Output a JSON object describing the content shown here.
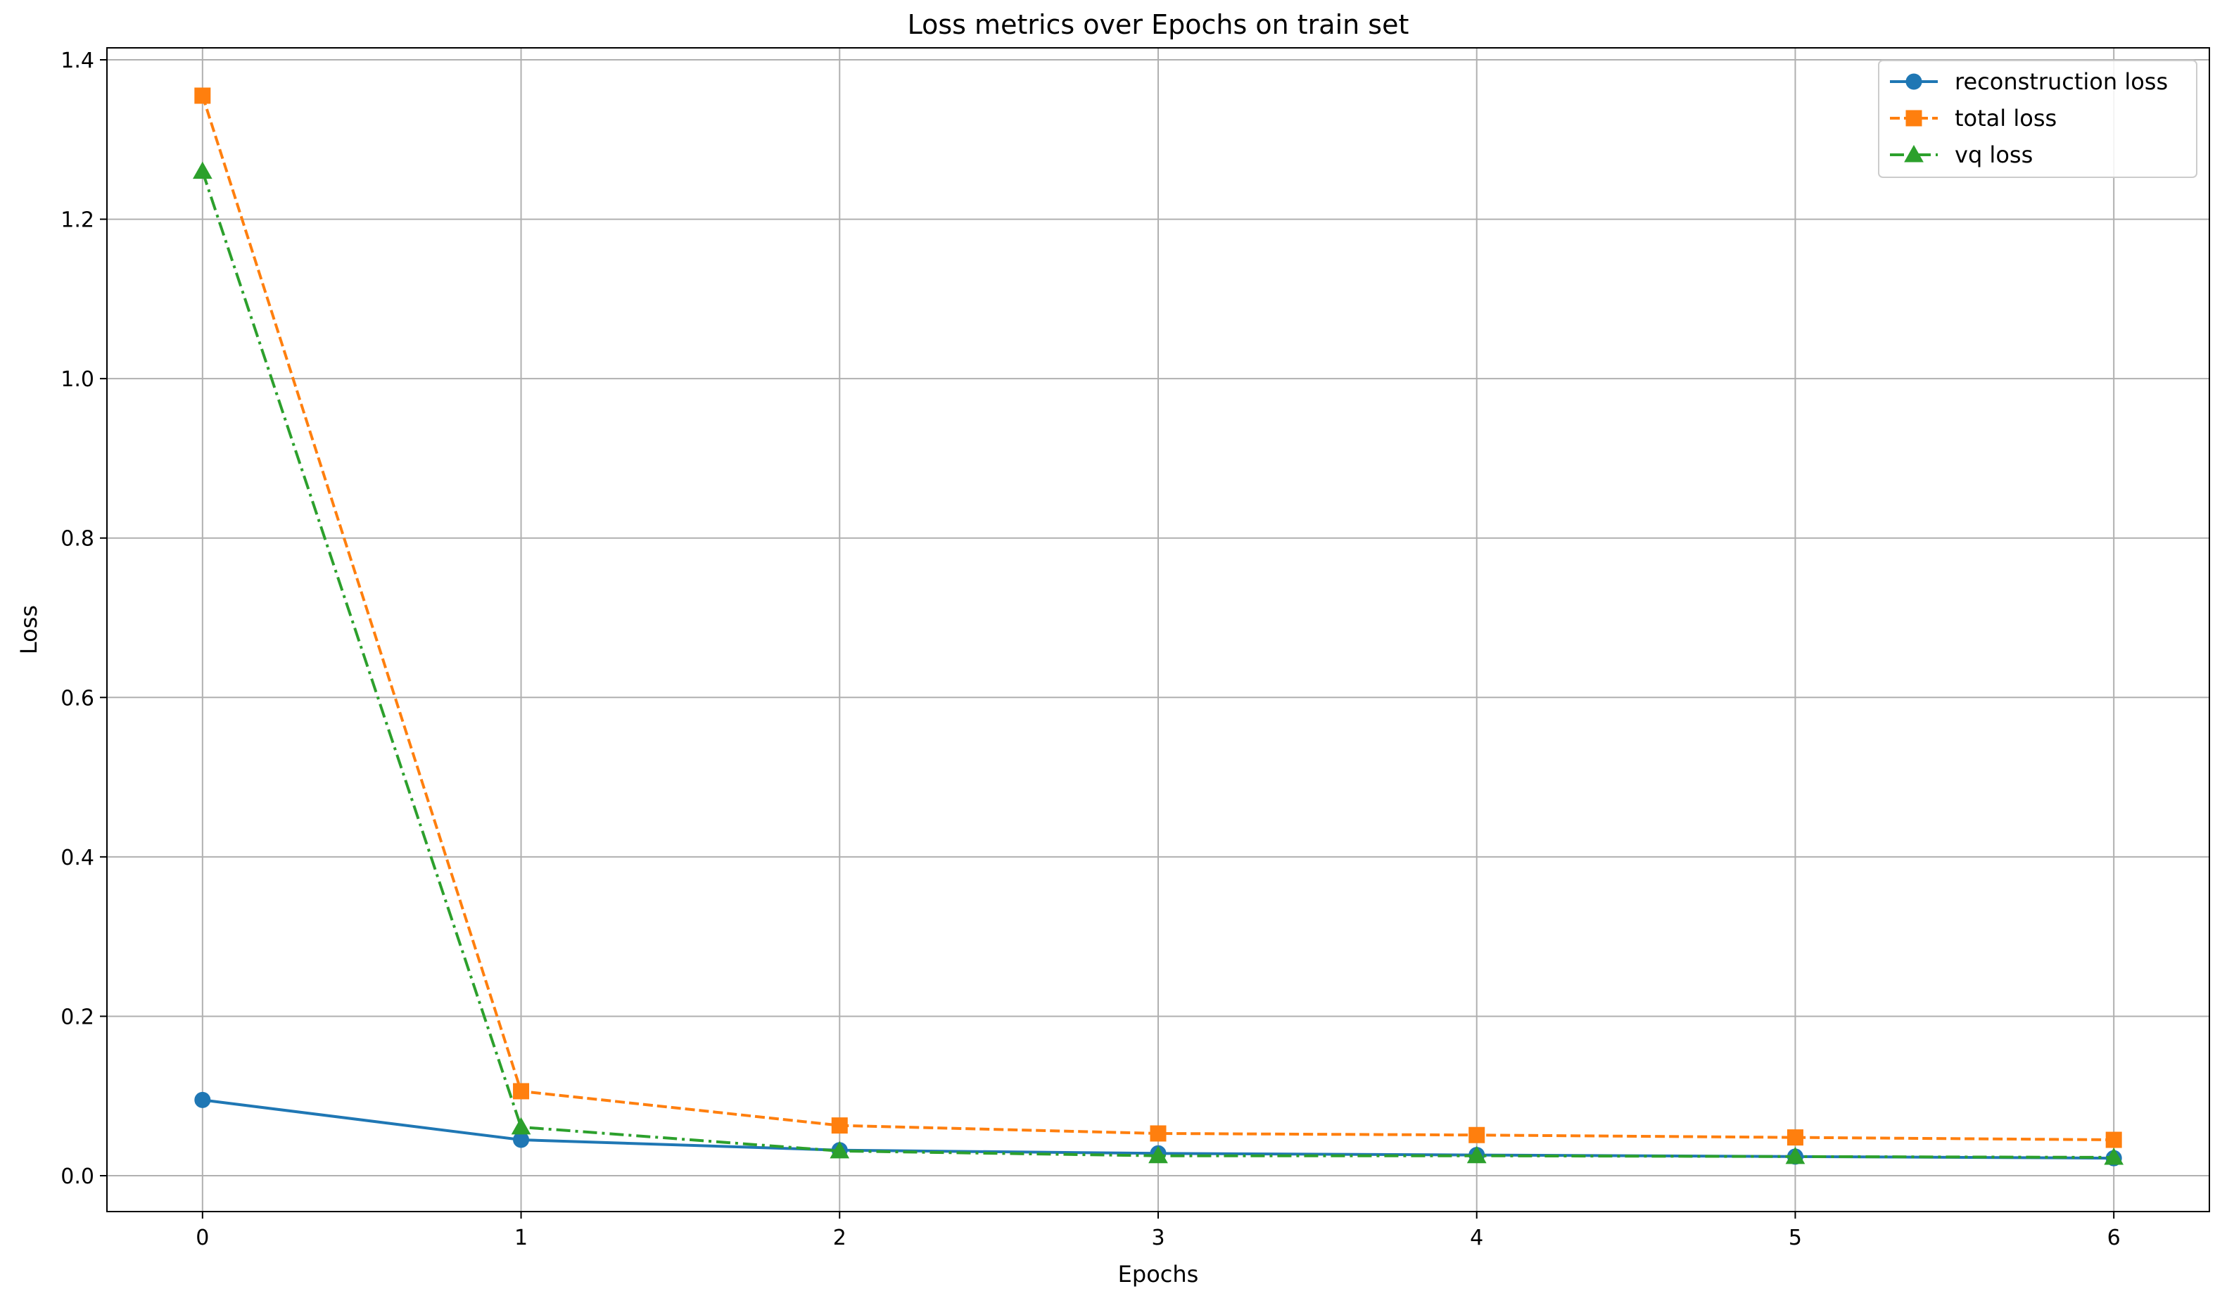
{
  "chart_data": {
    "type": "line",
    "title": "Loss metrics over Epochs on train set",
    "xlabel": "Epochs",
    "ylabel": "Loss",
    "x": [
      0,
      1,
      2,
      3,
      4,
      5,
      6
    ],
    "xlim": [
      -0.3,
      6.3
    ],
    "ylim": [
      -0.045,
      1.415
    ],
    "xticks": [
      "0",
      "1",
      "2",
      "3",
      "4",
      "5",
      "6"
    ],
    "yticks": [
      "0.0",
      "0.2",
      "0.4",
      "0.6",
      "0.8",
      "1.0",
      "1.2",
      "1.4"
    ],
    "grid": true,
    "legend_position": "top-right",
    "series": [
      {
        "name": "reconstruction loss",
        "color": "#1f77b4",
        "marker": "circle",
        "linestyle": "solid",
        "values": [
          0.095,
          0.045,
          0.032,
          0.028,
          0.026,
          0.024,
          0.022
        ]
      },
      {
        "name": "total loss",
        "color": "#ff7f0e",
        "marker": "square",
        "linestyle": "dashed",
        "values": [
          1.355,
          0.106,
          0.063,
          0.053,
          0.051,
          0.048,
          0.045
        ]
      },
      {
        "name": "vq loss",
        "color": "#2ca02c",
        "marker": "triangle",
        "linestyle": "dashdot",
        "values": [
          1.26,
          0.061,
          0.031,
          0.025,
          0.025,
          0.024,
          0.023
        ]
      }
    ]
  }
}
